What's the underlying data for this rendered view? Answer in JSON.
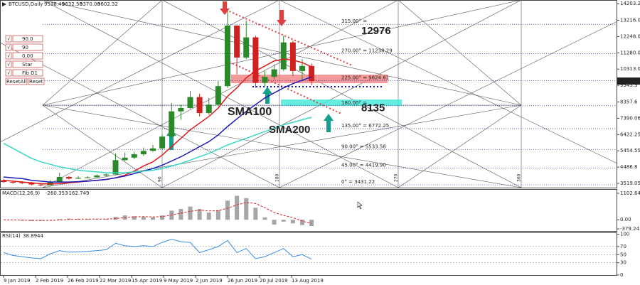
{
  "chart_data": [
    {
      "type": "candlestick",
      "symbol": "BTCUSD,Daily",
      "last_bar": {
        "open": 9538.49,
        "high": 9632.58,
        "low": 9370.08,
        "close": 9602.32
      },
      "x": [
        "2019-01-09",
        "2019-01-16",
        "2019-01-23",
        "2019-01-30",
        "2019-02-06",
        "2019-02-13",
        "2019-02-20",
        "2019-02-27",
        "2019-03-06",
        "2019-03-13",
        "2019-03-20",
        "2019-03-27",
        "2019-04-03",
        "2019-04-10",
        "2019-04-17",
        "2019-04-24",
        "2019-05-01",
        "2019-05-08",
        "2019-05-15",
        "2019-05-22",
        "2019-05-29",
        "2019-06-05",
        "2019-06-12",
        "2019-06-19",
        "2019-06-26",
        "2019-07-03",
        "2019-07-10",
        "2019-07-17",
        "2019-07-24",
        "2019-07-31",
        "2019-08-07",
        "2019-08-14",
        "2019-08-21",
        "2019-08-28"
      ],
      "open": [
        3700,
        3600,
        3580,
        3550,
        3450,
        3400,
        3600,
        3900,
        3800,
        3850,
        3880,
        3990,
        4050,
        4900,
        5050,
        5250,
        5450,
        5600,
        6300,
        7800,
        8000,
        8650,
        7700,
        8200,
        9300,
        12900,
        11000,
        12200,
        9500,
        9850,
        10300,
        11900,
        10200,
        10500
      ],
      "high": [
        3780,
        3680,
        3650,
        3600,
        3500,
        3700,
        4150,
        3950,
        3950,
        3950,
        4050,
        4100,
        5300,
        5350,
        5400,
        5650,
        5800,
        6400,
        8300,
        8200,
        9000,
        8850,
        8600,
        9600,
        13800,
        12800,
        13200,
        12300,
        10200,
        10600,
        12300,
        12000,
        10900,
        10650
      ],
      "low": [
        3550,
        3500,
        3480,
        3400,
        3350,
        3390,
        3580,
        3750,
        3780,
        3820,
        3850,
        3950,
        4030,
        4850,
        4950,
        5150,
        5400,
        5550,
        6200,
        7300,
        7950,
        7500,
        7600,
        8100,
        9200,
        10000,
        10900,
        9200,
        9300,
        9700,
        10200,
        9900,
        9600,
        9350
      ],
      "close": [
        3600,
        3580,
        3550,
        3450,
        3400,
        3600,
        3900,
        3800,
        3850,
        3880,
        3990,
        4050,
        4900,
        5050,
        5250,
        5450,
        5600,
        6300,
        7800,
        8000,
        8650,
        7700,
        8200,
        9300,
        12900,
        11000,
        12200,
        9500,
        9850,
        10300,
        11900,
        10200,
        10500,
        9602.32
      ],
      "up_color": "#2a8a2a",
      "down_color": "#d02020",
      "series": [
        {
          "color": "#e01818",
          "values": [
            3700,
            3650,
            3600,
            3550,
            3500,
            3480,
            3500,
            3550,
            3600,
            3650,
            3700,
            3750,
            3850,
            4000,
            4250,
            4550,
            4800,
            5200,
            5700,
            6200,
            6700,
            7100,
            7500,
            8000,
            8700,
            9200,
            9800,
            10200,
            10500,
            10800,
            10900,
            10850,
            10700,
            10450
          ]
        },
        {
          "name": "SMA100",
          "color": "#1a1ab8",
          "values": [
            3900,
            3850,
            3800,
            3700,
            3650,
            3600,
            3600,
            3600,
            3620,
            3650,
            3700,
            3750,
            3850,
            3950,
            4100,
            4250,
            4400,
            4600,
            4850,
            5100,
            5400,
            5700,
            6000,
            6400,
            6900,
            7350,
            7800,
            8200,
            8600,
            8900,
            9200,
            9450,
            9650,
            9850
          ]
        },
        {
          "name": "SMA200",
          "color": "#38d8c4",
          "values": [
            5900,
            5600,
            5300,
            5000,
            4800,
            4650,
            4500,
            4400,
            4300,
            4250,
            4200,
            4150,
            4150,
            4150,
            4200,
            4250,
            4300,
            4400,
            4550,
            4700,
            4900,
            5100,
            5300,
            5550,
            5800,
            6000,
            6200,
            6400,
            6600,
            6800,
            7000,
            7150,
            7300,
            7450
          ]
        }
      ],
      "ylim": [
        3265,
        14380
      ],
      "yticks": [
        3519.05,
        4486.8,
        5454.55,
        6422.25,
        7390.06,
        8357.6,
        9345.3,
        10313.05,
        11280.08,
        12248.05,
        13216.04,
        14203.28
      ],
      "xticks": [
        {
          "value": "2019-01-09",
          "label": "9 Jan 2019"
        },
        {
          "value": "2019-02-02",
          "label": "2 Feb 2019"
        },
        {
          "value": "2019-02-26",
          "label": "26 Feb 2019"
        },
        {
          "value": "2019-03-22",
          "label": "22 Mar 2019"
        },
        {
          "value": "2019-04-15",
          "label": "15 Apr 2019"
        },
        {
          "value": "2019-05-09",
          "label": "9 May 2019"
        },
        {
          "value": "2019-06-02",
          "label": "2 Jun 2019"
        },
        {
          "value": "2019-06-26",
          "label": "26 Jun 2019"
        },
        {
          "value": "2019-07-20",
          "label": "20 Jul 2019"
        },
        {
          "value": "2019-08-13",
          "label": "13 Aug 2019"
        }
      ],
      "gann_levels": [
        {
          "value": 12976,
          "label": "315.00° ="
        },
        {
          "value": 11238.29,
          "label": "270.00° = 11238.29"
        },
        {
          "value": 9624.61,
          "label": "225.00° = 9624.61"
        },
        {
          "value": 8135,
          "label": "180.00° ="
        },
        {
          "value": 6772.25,
          "label": "135.00° = 6772.25"
        },
        {
          "value": 5533.58,
          "label": "90.00° = 5533.58"
        },
        {
          "value": 4419.9,
          "label": "45.00° = 4419.90"
        },
        {
          "value": 3431.22,
          "label": "0° = 3431.22"
        }
      ],
      "highlight_levels": [
        12976,
        8135
      ],
      "gann_angles": [
        90,
        180,
        270,
        360
      ],
      "buttons": [
        "90.0",
        "90",
        "0.00",
        "Star",
        "Fib D1"
      ],
      "reset_buttons": [
        "ResetAll",
        "Reset"
      ]
    },
    {
      "type": "macd",
      "label": "MACD(12,26,9)",
      "current": [
        -260.353,
        -162.749
      ],
      "color": "#909090",
      "signal_color": "#e02020",
      "values": [
        0,
        -20,
        -40,
        -50,
        -40,
        -10,
        30,
        50,
        40,
        30,
        20,
        30,
        120,
        180,
        150,
        120,
        100,
        180,
        380,
        450,
        550,
        450,
        300,
        400,
        800,
        1000,
        900,
        500,
        100,
        -200,
        -80,
        -150,
        -220,
        -260.353
      ],
      "signal": [
        0,
        -5,
        -15,
        -25,
        -30,
        -25,
        -10,
        10,
        25,
        30,
        28,
        28,
        50,
        90,
        120,
        130,
        120,
        130,
        200,
        280,
        350,
        400,
        370,
        380,
        480,
        620,
        720,
        680,
        500,
        300,
        180,
        90,
        -50,
        -162.749
      ],
      "ylim": [
        -497,
        1250
      ],
      "yticks": [
        -379.241,
        {
          "value": 0,
          "label": "0.00"
        },
        1102.646
      ]
    },
    {
      "type": "rsi",
      "label": "RSI(14)",
      "current": 38.8944,
      "color": "#3a8ee0",
      "values": [
        55,
        48,
        45,
        42,
        40,
        52,
        60,
        56,
        57,
        58,
        60,
        62,
        78,
        72,
        70,
        72,
        70,
        80,
        88,
        82,
        80,
        55,
        62,
        70,
        85,
        55,
        65,
        40,
        45,
        55,
        65,
        45,
        50,
        38.8944
      ],
      "ylim": [
        -2,
        103
      ],
      "yticks": [
        0,
        30,
        50,
        70,
        100
      ],
      "levels": [
        30,
        50,
        70
      ]
    }
  ]
}
